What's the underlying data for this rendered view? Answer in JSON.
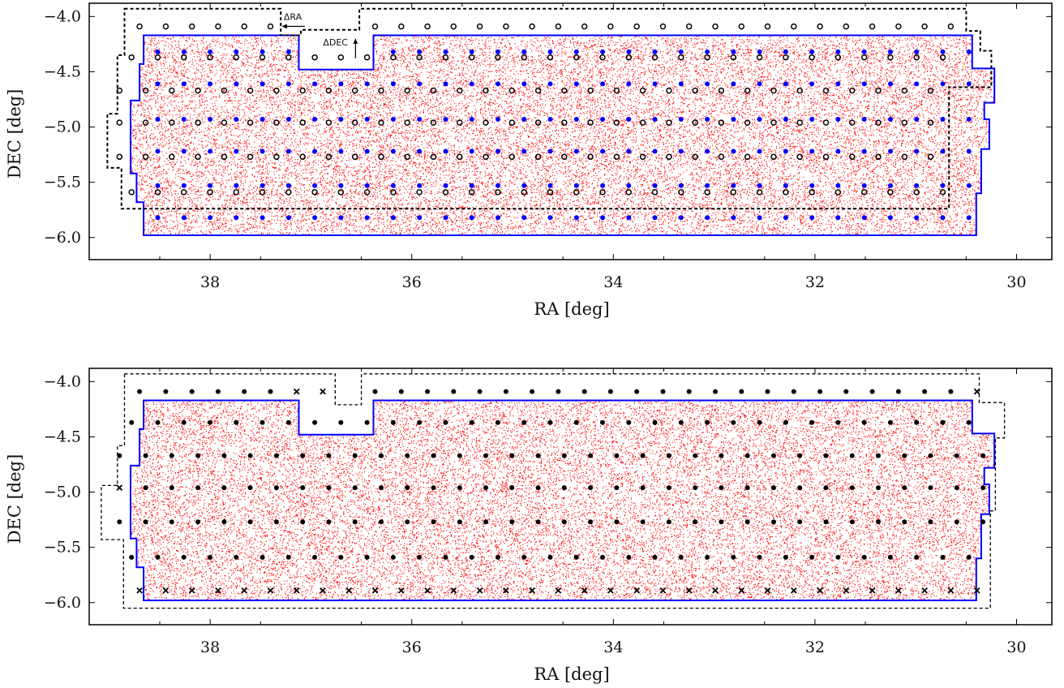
{
  "chart_data": [
    {
      "type": "scatter",
      "title": "",
      "xlabel": "RA [deg]",
      "ylabel": "DEC [deg]",
      "xlim": [
        39.2,
        29.65
      ],
      "ylim": [
        -6.2,
        -3.88
      ],
      "xticks": [
        38,
        36,
        34,
        32,
        30
      ],
      "yticks": [
        -4.0,
        -4.5,
        -5.0,
        -5.5,
        -6.0
      ],
      "xtick_labels": [
        "38",
        "36",
        "34",
        "32",
        "30"
      ],
      "ytick_labels": [
        "−4.0",
        "−4.5",
        "−5.0",
        "−5.5",
        "−6.0"
      ],
      "grid": false,
      "background_points": {
        "color": "#ff0000",
        "description_density": "dense"
      },
      "survey_boundary": {
        "color": "#0000ff",
        "polygon": [
          [
            38.66,
            -4.17
          ],
          [
            37.12,
            -4.17
          ],
          [
            37.12,
            -4.48
          ],
          [
            36.38,
            -4.48
          ],
          [
            36.38,
            -4.17
          ],
          [
            30.44,
            -4.17
          ],
          [
            30.44,
            -4.47
          ],
          [
            30.22,
            -4.47
          ],
          [
            30.22,
            -4.78
          ],
          [
            30.32,
            -4.78
          ],
          [
            30.32,
            -4.93
          ],
          [
            30.27,
            -4.93
          ],
          [
            30.27,
            -5.2
          ],
          [
            30.35,
            -5.2
          ],
          [
            30.35,
            -5.6
          ],
          [
            30.4,
            -5.6
          ],
          [
            30.4,
            -5.98
          ],
          [
            38.66,
            -5.98
          ],
          [
            38.66,
            -5.68
          ],
          [
            38.73,
            -5.68
          ],
          [
            38.73,
            -5.42
          ],
          [
            38.79,
            -5.42
          ],
          [
            38.79,
            -4.76
          ],
          [
            38.7,
            -4.76
          ],
          [
            38.7,
            -4.43
          ],
          [
            38.66,
            -4.43
          ]
        ]
      },
      "footprint_top": {
        "style": "dashed",
        "color": "#000000",
        "polygon": [
          [
            38.85,
            -3.93
          ],
          [
            37.3,
            -3.93
          ],
          [
            37.3,
            -4.17
          ],
          [
            37.1,
            -4.17
          ],
          [
            37.1,
            -4.12
          ],
          [
            36.52,
            -4.12
          ],
          [
            36.52,
            -3.93
          ],
          [
            30.5,
            -3.93
          ],
          [
            30.5,
            -4.13
          ],
          [
            30.36,
            -4.13
          ],
          [
            30.36,
            -4.31
          ],
          [
            30.25,
            -4.31
          ],
          [
            30.25,
            -4.64
          ],
          [
            30.67,
            -4.64
          ],
          [
            30.67,
            -5.74
          ],
          [
            38.88,
            -5.74
          ],
          [
            38.88,
            -5.37
          ],
          [
            39.02,
            -5.37
          ],
          [
            39.02,
            -4.88
          ],
          [
            38.92,
            -4.88
          ],
          [
            38.92,
            -4.35
          ],
          [
            38.85,
            -4.35
          ]
        ]
      },
      "footprint_bottom": {
        "style": "dashed",
        "color": "#000000",
        "polygon": [
          [
            38.85,
            -3.93
          ],
          [
            36.76,
            -3.93
          ],
          [
            36.76,
            -4.21
          ],
          [
            36.5,
            -4.21
          ],
          [
            36.5,
            -3.93
          ],
          [
            30.37,
            -3.93
          ],
          [
            30.37,
            -4.19
          ],
          [
            30.12,
            -4.19
          ],
          [
            30.12,
            -4.51
          ],
          [
            30.21,
            -4.51
          ],
          [
            30.21,
            -5.17
          ],
          [
            30.26,
            -5.17
          ],
          [
            30.26,
            -6.05
          ],
          [
            38.86,
            -6.05
          ],
          [
            38.86,
            -5.43
          ],
          [
            39.08,
            -5.43
          ],
          [
            39.08,
            -4.94
          ],
          [
            38.92,
            -4.94
          ],
          [
            38.92,
            -4.58
          ],
          [
            38.85,
            -4.58
          ]
        ]
      },
      "grid_step": {
        "dra": 0.2596,
        "ddec": 0.289,
        "ra0": 38.7,
        "dec0": -4.09
      },
      "annotations": [
        {
          "text": "ΔRA",
          "ra": 37.27,
          "dec": -4.06,
          "arrow": "left"
        },
        {
          "text": "ΔDEC",
          "ra": 36.88,
          "dec": -4.29,
          "arrow": "up"
        }
      ],
      "blue_points": {
        "color": "#0000ff",
        "rows_dec": [
          -4.32,
          -4.61,
          -4.93,
          -5.22,
          -5.53,
          -5.82
        ]
      },
      "open_circle_rows": {
        "color": "#000000",
        "rows_dec": [
          -4.09,
          -4.37,
          -4.67,
          -4.96,
          -5.27,
          -5.59
        ]
      }
    },
    {
      "type": "scatter",
      "title": "",
      "xlabel": "RA [deg]",
      "ylabel": "DEC [deg]",
      "xlim": [
        39.2,
        29.65
      ],
      "ylim": [
        -6.2,
        -3.88
      ],
      "xticks": [
        38,
        36,
        34,
        32,
        30
      ],
      "yticks": [
        -4.0,
        -4.5,
        -5.0,
        -5.5,
        -6.0
      ],
      "xtick_labels": [
        "38",
        "36",
        "34",
        "32",
        "30"
      ],
      "ytick_labels": [
        "−4.0",
        "−4.5",
        "−5.0",
        "−5.5",
        "−6.0"
      ],
      "grid": false,
      "filled_points": {
        "color": "#000000",
        "rows_dec": [
          -4.09,
          -4.37,
          -4.67,
          -4.96,
          -5.27,
          -5.59
        ]
      },
      "cross_points": {
        "color": "#000000",
        "marker": "x",
        "row_dec": -5.89
      }
    }
  ]
}
